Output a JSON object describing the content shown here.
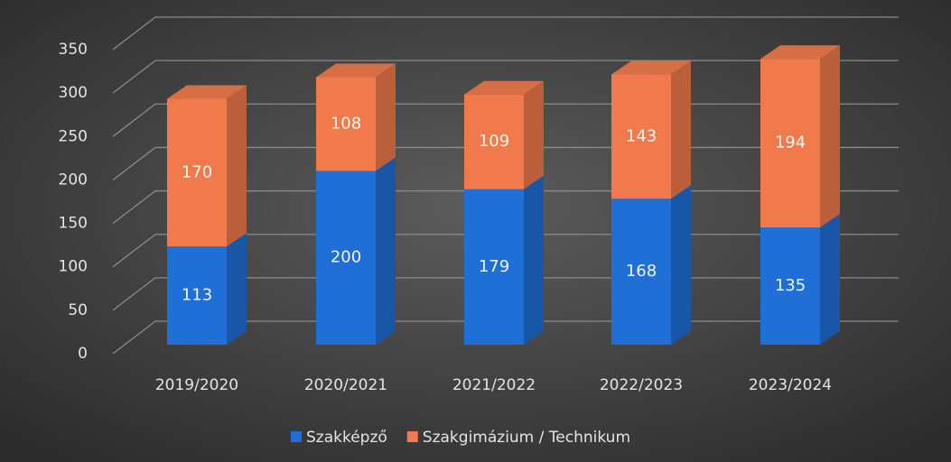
{
  "chart_data": {
    "type": "bar3d_stacked",
    "categories": [
      "2019/2020",
      "2020/2021",
      "2021/2022",
      "2022/2023",
      "2023/2024"
    ],
    "series": [
      {
        "name": "Szakképző",
        "color": "#1f6fd6",
        "values": [
          113,
          200,
          179,
          168,
          135
        ]
      },
      {
        "name": "Szakgimázium / Technikum",
        "color": "#f07a4c",
        "values": [
          170,
          108,
          109,
          143,
          194
        ]
      }
    ],
    "ylim": [
      0,
      350
    ],
    "yticks": [
      0,
      50,
      100,
      150,
      200,
      250,
      300,
      350
    ],
    "grid": true,
    "legend": "bottom"
  }
}
